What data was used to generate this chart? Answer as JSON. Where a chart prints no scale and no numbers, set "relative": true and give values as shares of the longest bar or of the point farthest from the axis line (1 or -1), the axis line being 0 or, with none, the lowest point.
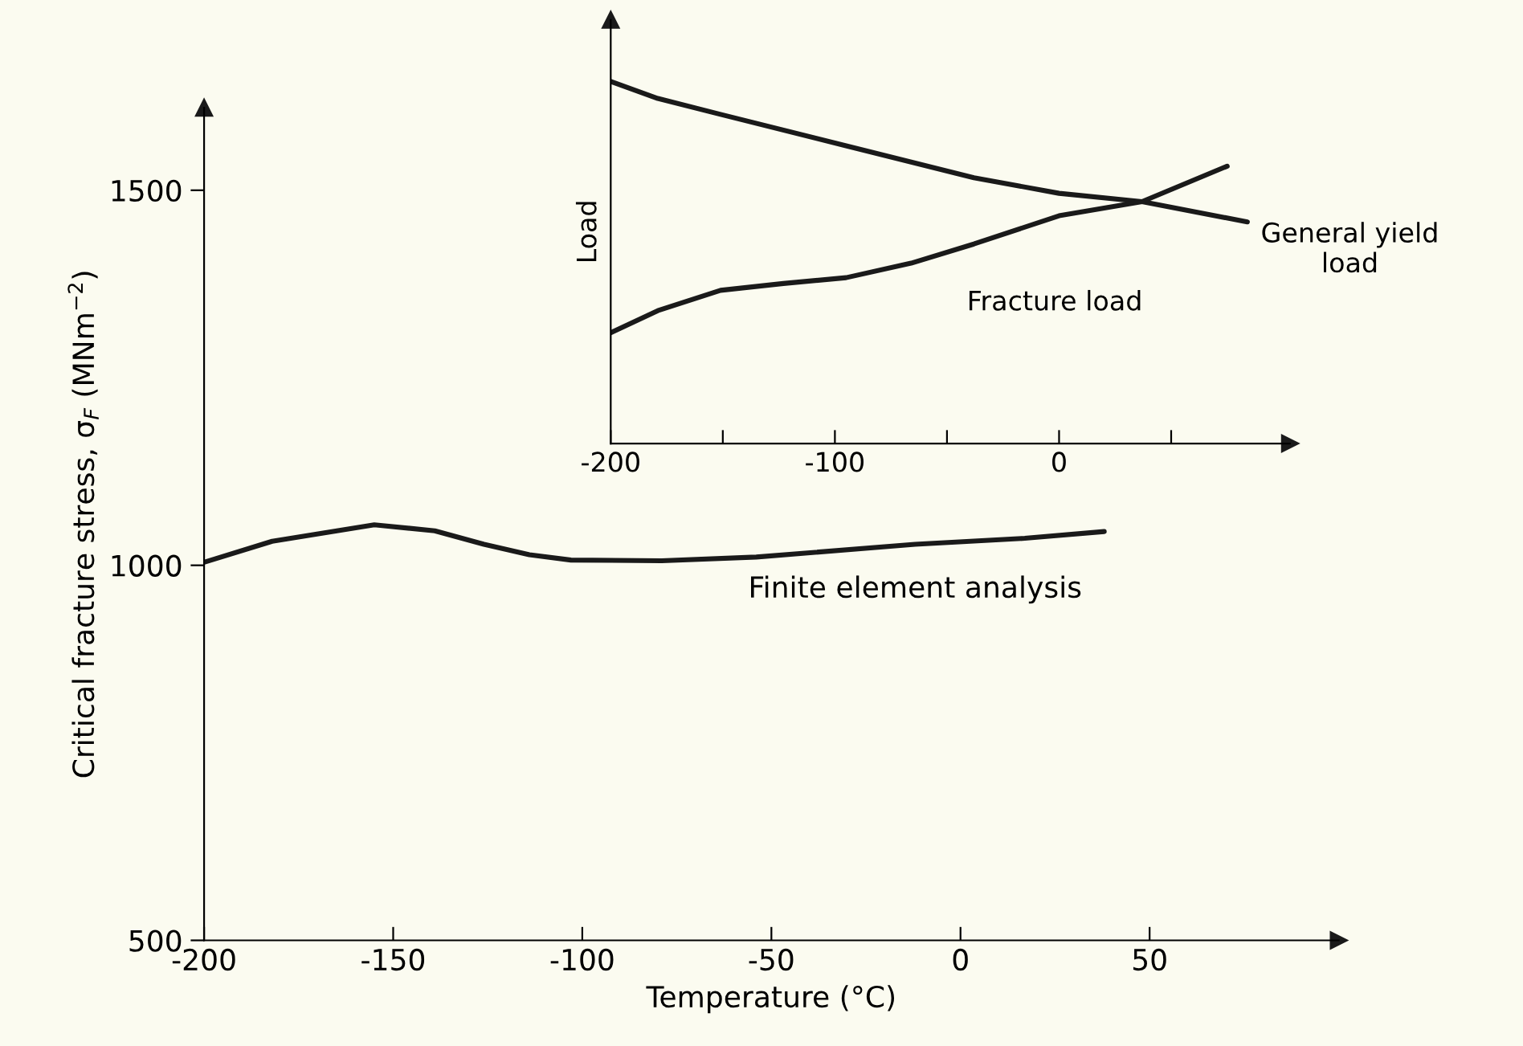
{
  "chart_data": [
    {
      "type": "line",
      "xlabel": "Temperature (°C)",
      "ylabel": "Critical fracture stress, σ$_{F}$ (MNm$^{−2}$)",
      "xlim": [
        -200,
        100
      ],
      "ylim": [
        500,
        1610
      ],
      "xticks": [
        -200,
        -150,
        -100,
        -50,
        0,
        50
      ],
      "yticks": [
        500,
        1000,
        1500
      ],
      "grid": false,
      "legend": false,
      "series": [
        {
          "name": "Finite element analysis",
          "color": "#1a1a1a",
          "x": [
            -200,
            -182,
            -155,
            -139,
            -126,
            -114,
            -103,
            -79,
            -54,
            -12,
            17,
            38
          ],
          "values": [
            1004,
            1032,
            1054,
            1046,
            1028,
            1014,
            1007,
            1006,
            1011,
            1028,
            1036,
            1045
          ]
        }
      ]
    },
    {
      "type": "line",
      "ylabel": "Load",
      "relative": true,
      "xlim": [
        -200,
        103
      ],
      "xticks": [
        -200,
        {
          "value": -150,
          "label": null
        },
        -100,
        {
          "value": -50,
          "label": null
        },
        0,
        {
          "value": 50,
          "label": null
        }
      ],
      "grid": false,
      "legend": false,
      "series": [
        {
          "name": "General yield\nload",
          "color": "#1a1a1a",
          "x": [
            -200,
            -179,
            -151,
            -95,
            -38,
            0,
            37,
            84
          ],
          "values": [
            1,
            0.953,
            0.909,
            0.822,
            0.734,
            0.691,
            0.668,
            0.612
          ]
        },
        {
          "name": "Fracture load",
          "color": "#1a1a1a",
          "x": [
            -200,
            -179,
            -151,
            -123,
            -95,
            -66,
            -38,
            0,
            37,
            75
          ],
          "values": [
            0.306,
            0.367,
            0.423,
            0.442,
            0.458,
            0.498,
            0.551,
            0.629,
            0.668,
            0.766
          ]
        }
      ]
    }
  ]
}
